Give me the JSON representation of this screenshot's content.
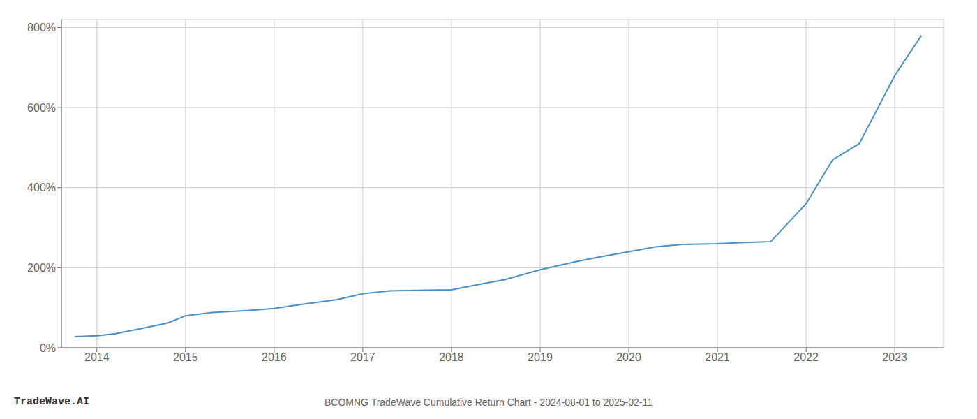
{
  "chart_data": {
    "type": "line",
    "title": "BCOMNG TradeWave Cumulative Return Chart - 2024-08-01 to 2025-02-11",
    "annotations": [
      "TradeWave.AI"
    ],
    "x": [
      2013.75,
      2014.0,
      2014.2,
      2014.5,
      2014.8,
      2015.0,
      2015.3,
      2015.7,
      2016.0,
      2016.3,
      2016.7,
      2017.0,
      2017.3,
      2017.7,
      2018.0,
      2018.3,
      2018.6,
      2019.0,
      2019.4,
      2019.7,
      2020.0,
      2020.3,
      2020.6,
      2021.0,
      2021.3,
      2021.6,
      2022.0,
      2022.3,
      2022.6,
      2023.0,
      2023.3
    ],
    "values": [
      28,
      30,
      35,
      48,
      62,
      80,
      88,
      93,
      98,
      108,
      120,
      135,
      142,
      144,
      145,
      158,
      170,
      195,
      215,
      228,
      240,
      252,
      258,
      260,
      263,
      265,
      360,
      470,
      510,
      680,
      780
    ],
    "color": "#4a90c4",
    "xlim": [
      2013.6,
      2023.55
    ],
    "xticks": [
      2014,
      2015,
      2016,
      2017,
      2018,
      2019,
      2020,
      2021,
      2022,
      2023
    ],
    "ylim": [
      0,
      820
    ],
    "yticks": [
      {
        "value": 0,
        "label": "0%"
      },
      {
        "value": 200,
        "label": "200%"
      },
      {
        "value": 400,
        "label": "400%"
      },
      {
        "value": 600,
        "label": "600%"
      },
      {
        "value": 800,
        "label": "800%"
      }
    ],
    "grid": true
  }
}
